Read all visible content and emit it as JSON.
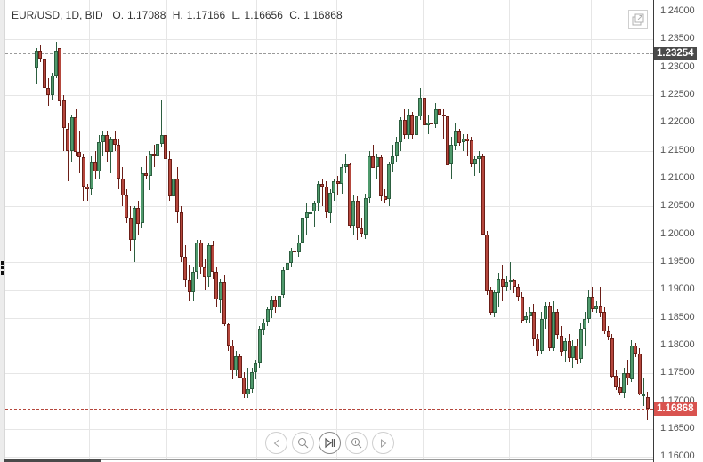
{
  "header": {
    "symbol": "EUR/USD, 1D, BID",
    "open_label": "O.",
    "open": "1.17088",
    "high_label": "H.",
    "high": "1.17166",
    "low_label": "L.",
    "low": "1.16656",
    "close_label": "C.",
    "close": "1.16868"
  },
  "axis": {
    "ticks": [
      "1.24000",
      "1.23500",
      "1.23000",
      "1.22500",
      "1.22000",
      "1.21500",
      "1.21000",
      "1.20500",
      "1.20000",
      "1.19500",
      "1.19000",
      "1.18500",
      "1.18000",
      "1.17500",
      "1.17000",
      "1.16500",
      "1.16000"
    ],
    "crosshair_price": "1.23254",
    "last_price": "1.16868",
    "last_price_color": "#d9534f",
    "crosshair_tag_color": "#4a4a4a"
  },
  "colors": {
    "up": "#4f9a6c",
    "down": "#b5473d",
    "grid": "#e6e6e6"
  },
  "toolbar": {
    "popout_icon": "popout-icon",
    "buttons": [
      {
        "name": "scroll-left-button",
        "icon": "triangle-left-icon"
      },
      {
        "name": "zoom-out-button",
        "icon": "zoom-out-icon"
      },
      {
        "name": "reset-to-latest-button",
        "icon": "skip-to-end-icon"
      },
      {
        "name": "zoom-in-button",
        "icon": "zoom-in-icon"
      },
      {
        "name": "scroll-right-button",
        "icon": "triangle-right-icon"
      }
    ]
  },
  "chart_data": {
    "type": "candlestick",
    "title": "EUR/USD, 1D, BID",
    "ylim": [
      1.16,
      1.24
    ],
    "y_ticks": [
      1.24,
      1.235,
      1.23,
      1.225,
      1.22,
      1.215,
      1.21,
      1.205,
      1.2,
      1.195,
      1.19,
      1.185,
      1.18,
      1.175,
      1.17,
      1.165,
      1.16
    ],
    "last": {
      "open": 1.17088,
      "high": 1.17166,
      "low": 1.16656,
      "close": 1.16868
    },
    "crosshair_price": 1.23254,
    "candles": [
      [
        1.23,
        1.2335,
        1.227,
        1.233
      ],
      [
        1.233,
        1.234,
        1.231,
        1.2315
      ],
      [
        1.2315,
        1.232,
        1.2255,
        1.2262
      ],
      [
        1.2262,
        1.228,
        1.223,
        1.225
      ],
      [
        1.225,
        1.229,
        1.224,
        1.2285
      ],
      [
        1.2285,
        1.2345,
        1.228,
        1.233
      ],
      [
        1.2335,
        1.2328,
        1.223,
        1.224
      ],
      [
        1.224,
        1.225,
        1.215,
        1.219
      ],
      [
        1.219,
        1.22,
        1.2095,
        1.215
      ],
      [
        1.215,
        1.2215,
        1.213,
        1.221
      ],
      [
        1.221,
        1.2225,
        1.214,
        1.2148
      ],
      [
        1.2148,
        1.2185,
        1.211,
        1.2138
      ],
      [
        1.2138,
        1.2145,
        1.206,
        1.2085
      ],
      [
        1.2085,
        1.209,
        1.206,
        1.208
      ],
      [
        1.208,
        1.214,
        1.207,
        1.213
      ],
      [
        1.213,
        1.215,
        1.21,
        1.2112
      ],
      [
        1.2112,
        1.2178,
        1.21,
        1.2165
      ],
      [
        1.2165,
        1.2185,
        1.214,
        1.2178
      ],
      [
        1.2178,
        1.2185,
        1.213,
        1.2148
      ],
      [
        1.2148,
        1.2175,
        1.211,
        1.217
      ],
      [
        1.217,
        1.2185,
        1.215,
        1.216
      ],
      [
        1.216,
        1.217,
        1.208,
        1.21
      ],
      [
        1.21,
        1.212,
        1.205,
        1.207
      ],
      [
        1.207,
        1.208,
        1.202,
        1.203
      ],
      [
        1.203,
        1.205,
        1.197,
        1.199
      ],
      [
        1.199,
        1.205,
        1.195,
        1.2048
      ],
      [
        1.2048,
        1.206,
        1.2,
        1.202
      ],
      [
        1.202,
        1.212,
        1.201,
        1.211
      ],
      [
        1.211,
        1.214,
        1.21,
        1.2105
      ],
      [
        1.2105,
        1.215,
        1.208,
        1.2145
      ],
      [
        1.2145,
        1.216,
        1.212,
        1.214
      ],
      [
        1.214,
        1.2195,
        1.212,
        1.2162
      ],
      [
        1.2162,
        1.224,
        1.2155,
        1.2178
      ],
      [
        1.2178,
        1.2182,
        1.213,
        1.2135
      ],
      [
        1.2135,
        1.215,
        1.206,
        1.2068
      ],
      [
        1.2068,
        1.211,
        1.205,
        1.21
      ],
      [
        1.21,
        1.212,
        1.202,
        1.204
      ],
      [
        1.204,
        1.205,
        1.195,
        1.196
      ],
      [
        1.196,
        1.198,
        1.1905,
        1.1918
      ],
      [
        1.1918,
        1.1945,
        1.188,
        1.1895
      ],
      [
        1.1895,
        1.194,
        1.188,
        1.1932
      ],
      [
        1.1932,
        1.199,
        1.192,
        1.1985
      ],
      [
        1.1985,
        1.199,
        1.193,
        1.194
      ],
      [
        1.194,
        1.1955,
        1.19,
        1.1922
      ],
      [
        1.1922,
        1.1985,
        1.1905,
        1.198
      ],
      [
        1.198,
        1.1988,
        1.192,
        1.1932
      ],
      [
        1.1932,
        1.194,
        1.187,
        1.1882
      ],
      [
        1.1882,
        1.192,
        1.186,
        1.1915
      ],
      [
        1.1915,
        1.1928,
        1.1835,
        1.1838
      ],
      [
        1.1838,
        1.184,
        1.179,
        1.18
      ],
      [
        1.18,
        1.181,
        1.174,
        1.1755
      ],
      [
        1.1755,
        1.179,
        1.1745,
        1.178
      ],
      [
        1.178,
        1.1785,
        1.174,
        1.1742
      ],
      [
        1.1742,
        1.1752,
        1.1705,
        1.1712
      ],
      [
        1.1712,
        1.176,
        1.1705,
        1.1722
      ],
      [
        1.1722,
        1.176,
        1.1715,
        1.1752
      ],
      [
        1.1752,
        1.1775,
        1.174,
        1.1768
      ],
      [
        1.1768,
        1.1835,
        1.176,
        1.183
      ],
      [
        1.183,
        1.1848,
        1.182,
        1.1842
      ],
      [
        1.1842,
        1.187,
        1.1835,
        1.1865
      ],
      [
        1.1865,
        1.189,
        1.185,
        1.1882
      ],
      [
        1.1882,
        1.189,
        1.186,
        1.187
      ],
      [
        1.187,
        1.19,
        1.186,
        1.189
      ],
      [
        1.189,
        1.194,
        1.1885,
        1.1935
      ],
      [
        1.1935,
        1.1955,
        1.193,
        1.1948
      ],
      [
        1.1948,
        1.1975,
        1.194,
        1.197
      ],
      [
        1.197,
        1.1985,
        1.196,
        1.1968
      ],
      [
        1.1968,
        1.1998,
        1.196,
        1.1985
      ],
      [
        1.1985,
        1.2045,
        1.198,
        1.203
      ],
      [
        1.203,
        1.2055,
        1.1998,
        1.204
      ],
      [
        1.204,
        1.2085,
        1.203,
        1.204
      ],
      [
        1.204,
        1.206,
        1.2012,
        1.2055
      ],
      [
        1.2055,
        1.2095,
        1.204,
        1.209
      ],
      [
        1.209,
        1.21,
        1.205,
        1.2085
      ],
      [
        1.2085,
        1.2095,
        1.203,
        1.2038
      ],
      [
        1.2038,
        1.208,
        1.202,
        1.2075
      ],
      [
        1.2075,
        1.21,
        1.206,
        1.2095
      ],
      [
        1.2095,
        1.2105,
        1.207,
        1.209
      ],
      [
        1.209,
        1.2125,
        1.2072,
        1.212
      ],
      [
        1.212,
        1.2145,
        1.211,
        1.2125
      ],
      [
        1.2125,
        1.2128,
        1.201,
        1.2015
      ],
      [
        1.2015,
        1.207,
        1.2,
        1.206
      ],
      [
        1.206,
        1.2068,
        1.199,
        1.201
      ],
      [
        1.201,
        1.203,
        1.1995,
        1.2
      ],
      [
        1.2,
        1.2072,
        1.199,
        1.2065
      ],
      [
        1.2065,
        1.215,
        1.2058,
        1.214
      ],
      [
        1.214,
        1.216,
        1.2118,
        1.212
      ],
      [
        1.212,
        1.2145,
        1.21,
        1.2138
      ],
      [
        1.2138,
        1.2142,
        1.206,
        1.2068
      ],
      [
        1.2068,
        1.208,
        1.2055,
        1.2062
      ],
      [
        1.2062,
        1.213,
        1.205,
        1.2125
      ],
      [
        1.2125,
        1.216,
        1.211,
        1.214
      ],
      [
        1.214,
        1.2175,
        1.213,
        1.2165
      ],
      [
        1.2165,
        1.221,
        1.215,
        1.2205
      ],
      [
        1.2205,
        1.2225,
        1.217,
        1.2178
      ],
      [
        1.2178,
        1.2225,
        1.2172,
        1.2215
      ],
      [
        1.2215,
        1.222,
        1.217,
        1.2178
      ],
      [
        1.2178,
        1.222,
        1.217,
        1.2212
      ],
      [
        1.2212,
        1.2262,
        1.2205,
        1.2245
      ],
      [
        1.2245,
        1.2258,
        1.219,
        1.2195
      ],
      [
        1.2195,
        1.2215,
        1.218,
        1.22
      ],
      [
        1.22,
        1.221,
        1.216,
        1.2198
      ],
      [
        1.2198,
        1.2235,
        1.219,
        1.2225
      ],
      [
        1.2225,
        1.2245,
        1.221,
        1.2215
      ],
      [
        1.2215,
        1.2225,
        1.217,
        1.2212
      ],
      [
        1.2212,
        1.2215,
        1.2115,
        1.2125
      ],
      [
        1.2125,
        1.2175,
        1.21,
        1.216
      ],
      [
        1.216,
        1.22,
        1.215,
        1.2185
      ],
      [
        1.2185,
        1.219,
        1.216,
        1.2165
      ],
      [
        1.2165,
        1.218,
        1.215,
        1.2172
      ],
      [
        1.2172,
        1.218,
        1.214,
        1.2168
      ],
      [
        1.2168,
        1.2175,
        1.212,
        1.2125
      ],
      [
        1.2125,
        1.214,
        1.2105,
        1.2135
      ],
      [
        1.2135,
        1.215,
        1.211,
        1.214
      ],
      [
        1.214,
        1.2145,
        1.2,
        1.2
      ],
      [
        1.2,
        1.2005,
        1.189,
        1.19
      ],
      [
        1.19,
        1.1905,
        1.1855,
        1.1858
      ],
      [
        1.1858,
        1.19,
        1.185,
        1.1895
      ],
      [
        1.1895,
        1.193,
        1.187,
        1.192
      ],
      [
        1.192,
        1.1945,
        1.188,
        1.1905
      ],
      [
        1.1905,
        1.1925,
        1.19,
        1.1915
      ],
      [
        1.1915,
        1.195,
        1.19,
        1.1918
      ],
      [
        1.1918,
        1.192,
        1.1895,
        1.1905
      ],
      [
        1.1905,
        1.191,
        1.188,
        1.1888
      ],
      [
        1.1888,
        1.1895,
        1.184,
        1.1845
      ],
      [
        1.1845,
        1.186,
        1.184,
        1.1852
      ],
      [
        1.1852,
        1.1868,
        1.184,
        1.186
      ],
      [
        1.186,
        1.1875,
        1.18,
        1.1812
      ],
      [
        1.1812,
        1.182,
        1.178,
        1.179
      ],
      [
        1.179,
        1.186,
        1.1785,
        1.1848
      ],
      [
        1.1848,
        1.1878,
        1.183,
        1.1872
      ],
      [
        1.1872,
        1.1878,
        1.179,
        1.1795
      ],
      [
        1.1795,
        1.188,
        1.179,
        1.186
      ],
      [
        1.186,
        1.1865,
        1.181,
        1.1818
      ],
      [
        1.1818,
        1.1835,
        1.178,
        1.179
      ],
      [
        1.179,
        1.1815,
        1.177,
        1.1808
      ],
      [
        1.1808,
        1.182,
        1.177,
        1.1778
      ],
      [
        1.1778,
        1.181,
        1.176,
        1.18
      ],
      [
        1.18,
        1.1812,
        1.1765,
        1.1775
      ],
      [
        1.1775,
        1.184,
        1.1768,
        1.183
      ],
      [
        1.183,
        1.186,
        1.18,
        1.1848
      ],
      [
        1.1848,
        1.19,
        1.184,
        1.1888
      ],
      [
        1.1888,
        1.1905,
        1.186,
        1.1865
      ],
      [
        1.1865,
        1.188,
        1.186,
        1.1872
      ],
      [
        1.1872,
        1.1905,
        1.185,
        1.186
      ],
      [
        1.186,
        1.187,
        1.182,
        1.1825
      ],
      [
        1.1825,
        1.1835,
        1.181,
        1.1815
      ],
      [
        1.1815,
        1.182,
        1.174,
        1.1745
      ],
      [
        1.1745,
        1.1755,
        1.172,
        1.1725
      ],
      [
        1.1725,
        1.174,
        1.171,
        1.1715
      ],
      [
        1.1715,
        1.176,
        1.1705,
        1.175
      ],
      [
        1.175,
        1.1775,
        1.173,
        1.174
      ],
      [
        1.174,
        1.181,
        1.1735,
        1.18
      ],
      [
        1.18,
        1.1805,
        1.178,
        1.1785
      ],
      [
        1.1785,
        1.1795,
        1.171,
        1.1712
      ],
      [
        1.1712,
        1.174,
        1.169,
        1.1712
      ],
      [
        1.1708,
        1.1717,
        1.1666,
        1.1687
      ]
    ]
  }
}
